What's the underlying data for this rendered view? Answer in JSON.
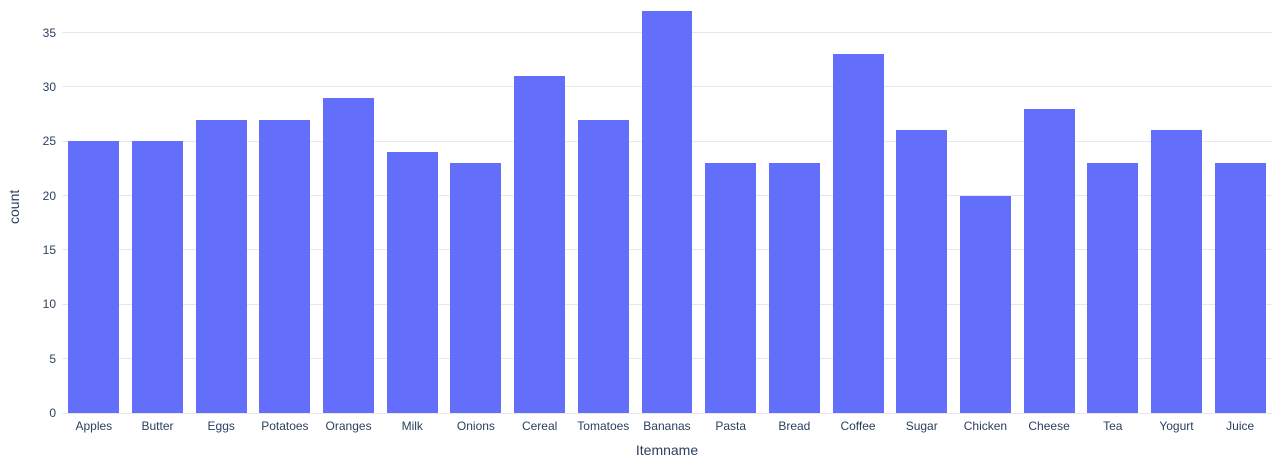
{
  "chart_data": {
    "type": "bar",
    "title": "",
    "xlabel": "Itemname",
    "ylabel": "count",
    "categories": [
      "Apples",
      "Butter",
      "Eggs",
      "Potatoes",
      "Oranges",
      "Milk",
      "Onions",
      "Cereal",
      "Tomatoes",
      "Bananas",
      "Pasta",
      "Bread",
      "Coffee",
      "Sugar",
      "Chicken",
      "Cheese",
      "Tea",
      "Yogurt",
      "Juice"
    ],
    "values": [
      25,
      25,
      27,
      27,
      29,
      24,
      23,
      31,
      27,
      37,
      23,
      23,
      33,
      26,
      20,
      28,
      23,
      26,
      23
    ],
    "yticks": [
      0,
      5,
      10,
      15,
      20,
      25,
      30,
      35
    ],
    "ylim": [
      0,
      38
    ],
    "grid": true,
    "legend_visible": false,
    "bar_color": "#636efa",
    "text_color": "#2a3f5f",
    "grid_color": "#e8e8e8",
    "background_color": "#ffffff"
  }
}
